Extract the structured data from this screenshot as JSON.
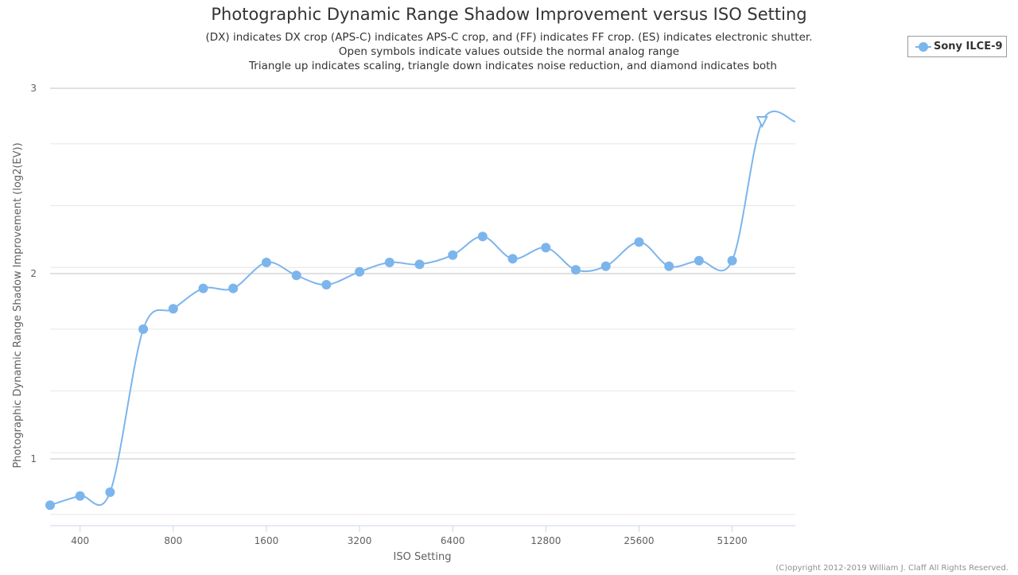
{
  "chart_data": {
    "type": "line",
    "title": "Photographic Dynamic Range Shadow Improvement versus ISO Setting",
    "subtitle": [
      "(DX) indicates DX crop (APS-C) indicates APS-C crop, and (FF) indicates FF crop. (ES) indicates electronic shutter.",
      "Open symbols indicate values outside the normal analog range",
      "Triangle up indicates scaling, triangle down indicates noise reduction, and diamond indicates both"
    ],
    "xlabel": "ISO Setting",
    "ylabel": "Photographic Dynamic Range Shadow Improvement (log2(EV))",
    "x_scale": "log2",
    "xlim": [
      320,
      81920
    ],
    "ylim": [
      0.7,
      3
    ],
    "x_ticks": [
      400,
      800,
      1600,
      3200,
      6400,
      12800,
      25600,
      51200
    ],
    "x_tick_labels": [
      "400",
      "800",
      "1600",
      "3200",
      "6400",
      "12800",
      "25600",
      "51200"
    ],
    "y_ticks": [
      1,
      2,
      3
    ],
    "y_tick_labels": [
      "1",
      "2",
      "3"
    ],
    "grid": true,
    "legend_position": "top-right",
    "series": [
      {
        "name": "Sony ILCE-9",
        "color": "#7cb5ec",
        "points": [
          {
            "x": 320,
            "y": 0.75,
            "marker": "circle"
          },
          {
            "x": 400,
            "y": 0.8,
            "marker": "circle"
          },
          {
            "x": 500,
            "y": 0.82,
            "marker": "circle"
          },
          {
            "x": 640,
            "y": 1.7,
            "marker": "circle"
          },
          {
            "x": 800,
            "y": 1.81,
            "marker": "circle"
          },
          {
            "x": 1000,
            "y": 1.92,
            "marker": "circle"
          },
          {
            "x": 1250,
            "y": 1.92,
            "marker": "circle"
          },
          {
            "x": 1600,
            "y": 2.06,
            "marker": "circle"
          },
          {
            "x": 2000,
            "y": 1.99,
            "marker": "circle"
          },
          {
            "x": 2500,
            "y": 1.94,
            "marker": "circle"
          },
          {
            "x": 3200,
            "y": 2.01,
            "marker": "circle"
          },
          {
            "x": 4000,
            "y": 2.06,
            "marker": "circle"
          },
          {
            "x": 5000,
            "y": 2.05,
            "marker": "circle"
          },
          {
            "x": 6400,
            "y": 2.1,
            "marker": "circle"
          },
          {
            "x": 8000,
            "y": 2.2,
            "marker": "circle"
          },
          {
            "x": 10000,
            "y": 2.08,
            "marker": "circle"
          },
          {
            "x": 12800,
            "y": 2.14,
            "marker": "circle"
          },
          {
            "x": 16000,
            "y": 2.02,
            "marker": "circle"
          },
          {
            "x": 20000,
            "y": 2.04,
            "marker": "circle"
          },
          {
            "x": 25600,
            "y": 2.17,
            "marker": "circle"
          },
          {
            "x": 32000,
            "y": 2.04,
            "marker": "circle"
          },
          {
            "x": 40000,
            "y": 2.07,
            "marker": "circle"
          },
          {
            "x": 51200,
            "y": 2.07,
            "marker": "circle"
          },
          {
            "x": 64000,
            "y": 2.82,
            "marker": "triangle-down-open"
          },
          {
            "x": 81920,
            "y": 2.82,
            "marker": "none"
          }
        ]
      }
    ]
  },
  "footer": {
    "copyright": "(C)opyright 2012-2019 William J. Claff All Rights Reserved."
  }
}
